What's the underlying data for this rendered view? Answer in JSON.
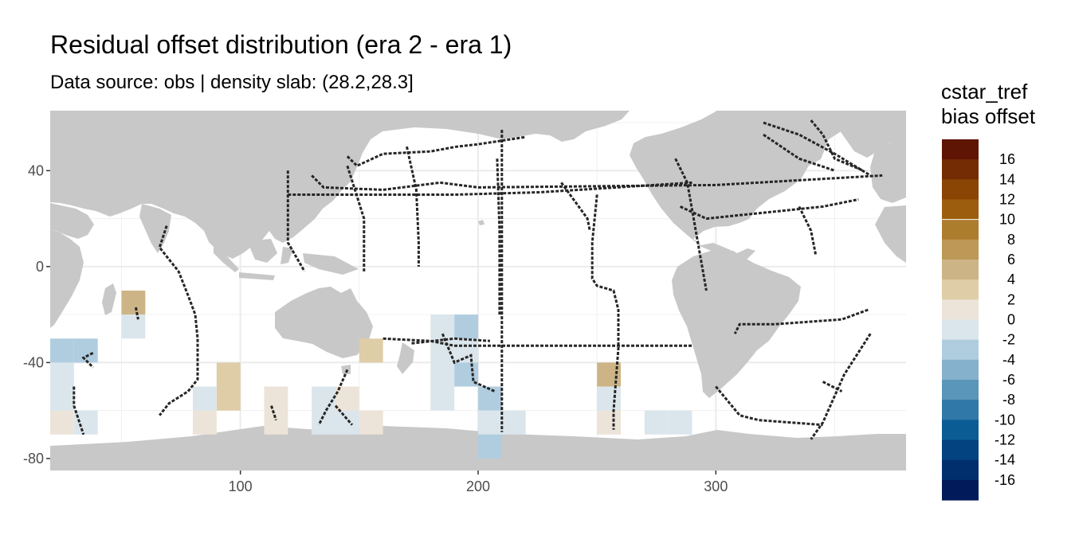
{
  "chart_data": {
    "type": "heatmap",
    "title": "Residual offset distribution (era 2 - era 1)",
    "subtitle": "Data source: obs | density slab: (28.2,28.3]",
    "xlabel": "",
    "ylabel": "",
    "xlim": [
      20,
      380
    ],
    "ylim": [
      -85,
      65
    ],
    "x_ticks": [
      100,
      200,
      300
    ],
    "y_ticks": [
      40,
      0,
      -40,
      -80
    ],
    "grid": true,
    "legend": {
      "title_lines": [
        "cstar_tref",
        "bias offset"
      ],
      "position": "right",
      "labels": [
        "16",
        "14",
        "12",
        "10",
        "8",
        "6",
        "4",
        "2",
        "0",
        "-2",
        "-4",
        "-6",
        "-8",
        "-10",
        "-12",
        "-14",
        "-16"
      ],
      "colors": [
        "#5e1503",
        "#742c04",
        "#8a4404",
        "#9c5e0e",
        "#ad7d2e",
        "#bd9856",
        "#cdb486",
        "#dfcda8",
        "#ece4d8",
        "#dbe6ec",
        "#b0cde0",
        "#85b1cc",
        "#5a95ba",
        "#2f78a8",
        "#0a5c94",
        "#024380",
        "#012f6e",
        "#001a5a"
      ]
    },
    "cells": [
      {
        "lon": 55,
        "lat": -15,
        "value": 5
      },
      {
        "lon": 55,
        "lat": -25,
        "value": -1
      },
      {
        "lon": 25,
        "lat": -35,
        "value": -3
      },
      {
        "lon": 35,
        "lat": -35,
        "value": -3
      },
      {
        "lon": 25,
        "lat": -45,
        "value": -1
      },
      {
        "lon": 25,
        "lat": -55,
        "value": -1
      },
      {
        "lon": 25,
        "lat": -65,
        "value": 1
      },
      {
        "lon": 35,
        "lat": -65,
        "value": -1
      },
      {
        "lon": 95,
        "lat": -45,
        "value": 3
      },
      {
        "lon": 95,
        "lat": -55,
        "value": 3
      },
      {
        "lon": 85,
        "lat": -55,
        "value": -1
      },
      {
        "lon": 85,
        "lat": -65,
        "value": 1
      },
      {
        "lon": 115,
        "lat": -55,
        "value": 1
      },
      {
        "lon": 115,
        "lat": -65,
        "value": 1
      },
      {
        "lon": 135,
        "lat": -55,
        "value": -1
      },
      {
        "lon": 135,
        "lat": -65,
        "value": -1
      },
      {
        "lon": 145,
        "lat": -55,
        "value": 1
      },
      {
        "lon": 145,
        "lat": -65,
        "value": -1
      },
      {
        "lon": 155,
        "lat": -35,
        "value": 3
      },
      {
        "lon": 155,
        "lat": -65,
        "value": 1
      },
      {
        "lon": 185,
        "lat": -25,
        "value": -1
      },
      {
        "lon": 185,
        "lat": -35,
        "value": -1
      },
      {
        "lon": 185,
        "lat": -45,
        "value": -1
      },
      {
        "lon": 185,
        "lat": -55,
        "value": -1
      },
      {
        "lon": 195,
        "lat": -25,
        "value": -3
      },
      {
        "lon": 195,
        "lat": -35,
        "value": -1
      },
      {
        "lon": 195,
        "lat": -45,
        "value": -3
      },
      {
        "lon": 205,
        "lat": -55,
        "value": -3
      },
      {
        "lon": 205,
        "lat": -65,
        "value": -1
      },
      {
        "lon": 215,
        "lat": -65,
        "value": -1
      },
      {
        "lon": 205,
        "lat": -75,
        "value": -3
      },
      {
        "lon": 255,
        "lat": -45,
        "value": 5
      },
      {
        "lon": 255,
        "lat": -55,
        "value": -1
      },
      {
        "lon": 255,
        "lat": -65,
        "value": 1
      },
      {
        "lon": 275,
        "lat": -65,
        "value": -1
      },
      {
        "lon": 285,
        "lat": -65,
        "value": -1
      }
    ],
    "tracks": [
      [
        [
          56,
          -17
        ],
        [
          57,
          -22
        ]
      ],
      [
        [
          69,
          17
        ],
        [
          66,
          8
        ],
        [
          74,
          -2
        ],
        [
          78,
          -12
        ],
        [
          81,
          -20
        ],
        [
          82,
          -30
        ],
        [
          82,
          -47
        ],
        [
          78,
          -52
        ],
        [
          70,
          -57
        ],
        [
          66,
          -62
        ]
      ],
      [
        [
          38,
          -36
        ],
        [
          34,
          -38
        ],
        [
          38,
          -42
        ]
      ],
      [
        [
          30,
          -50
        ],
        [
          30,
          -58
        ],
        [
          32,
          -64
        ],
        [
          34,
          -70
        ]
      ],
      [
        [
          113,
          -58
        ],
        [
          115,
          -64
        ]
      ],
      [
        [
          120,
          40
        ],
        [
          120,
          10
        ],
        [
          127,
          -2
        ]
      ],
      [
        [
          145,
          -43
        ],
        [
          141,
          -52
        ],
        [
          136,
          -60
        ],
        [
          133,
          -66
        ]
      ],
      [
        [
          140,
          -58
        ],
        [
          147,
          -66
        ]
      ],
      [
        [
          130,
          38
        ],
        [
          135,
          33
        ],
        [
          160,
          32
        ],
        [
          184,
          35
        ],
        [
          200,
          33
        ],
        [
          300,
          34
        ],
        [
          370,
          38
        ]
      ],
      [
        [
          120,
          30
        ],
        [
          145,
          30
        ],
        [
          190,
          30
        ],
        [
          226,
          31
        ],
        [
          290,
          35
        ]
      ],
      [
        [
          145,
          46
        ],
        [
          149,
          42
        ],
        [
          160,
          47
        ],
        [
          180,
          48
        ],
        [
          191,
          50
        ],
        [
          200,
          51
        ],
        [
          220,
          54
        ]
      ],
      [
        [
          145,
          42
        ],
        [
          152,
          20
        ],
        [
          152,
          -2
        ]
      ],
      [
        [
          170,
          50
        ],
        [
          174,
          32
        ],
        [
          175,
          10
        ],
        [
          175,
          0
        ]
      ],
      [
        [
          210,
          57
        ],
        [
          210,
          20
        ],
        [
          210,
          -65
        ],
        [
          210,
          -69
        ]
      ],
      [
        [
          208,
          45
        ],
        [
          209,
          15
        ],
        [
          209,
          -20
        ]
      ],
      [
        [
          250,
          30
        ],
        [
          248,
          10
        ],
        [
          248,
          -5
        ],
        [
          250,
          -8
        ],
        [
          257,
          -10
        ],
        [
          259,
          -18
        ],
        [
          259,
          -34
        ],
        [
          257,
          -60
        ],
        [
          257,
          -68
        ]
      ],
      [
        [
          160,
          -30
        ],
        [
          180,
          -31
        ],
        [
          190,
          -33
        ],
        [
          220,
          -33
        ],
        [
          290,
          -33
        ]
      ],
      [
        [
          172,
          -32
        ],
        [
          190,
          -30
        ],
        [
          205,
          -31
        ]
      ],
      [
        [
          185,
          -28
        ],
        [
          190,
          -40
        ],
        [
          197,
          -37
        ],
        [
          198,
          -48
        ],
        [
          207,
          -52
        ]
      ],
      [
        [
          235,
          35
        ],
        [
          246,
          20
        ],
        [
          247,
          15
        ]
      ],
      [
        [
          283,
          45
        ],
        [
          288,
          35
        ],
        [
          296,
          -10
        ]
      ],
      [
        [
          285,
          25
        ],
        [
          296,
          20
        ],
        [
          345,
          25
        ],
        [
          360,
          28
        ]
      ],
      [
        [
          335,
          25
        ],
        [
          340,
          15
        ],
        [
          342,
          5
        ]
      ],
      [
        [
          320,
          60
        ],
        [
          335,
          55
        ],
        [
          350,
          47
        ],
        [
          365,
          38
        ]
      ],
      [
        [
          320,
          55
        ],
        [
          335,
          45
        ],
        [
          350,
          40
        ]
      ],
      [
        [
          364,
          -18
        ],
        [
          353,
          -22
        ],
        [
          325,
          -24
        ],
        [
          310,
          -24
        ],
        [
          308,
          -28
        ]
      ],
      [
        [
          365,
          -28
        ],
        [
          354,
          -45
        ],
        [
          345,
          -65
        ],
        [
          340,
          -72
        ]
      ],
      [
        [
          300,
          -50
        ],
        [
          310,
          -62
        ],
        [
          318,
          -64
        ],
        [
          345,
          -66
        ]
      ],
      [
        [
          345,
          -48
        ],
        [
          353,
          -52
        ]
      ],
      [
        [
          340,
          61
        ],
        [
          345,
          55
        ],
        [
          350,
          45
        ],
        [
          362,
          40
        ]
      ]
    ]
  }
}
